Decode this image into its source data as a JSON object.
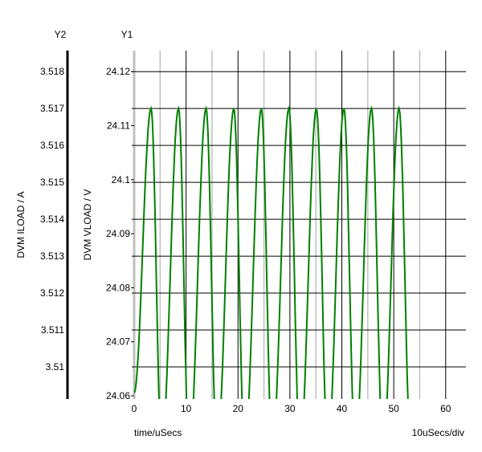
{
  "chart_data": {
    "type": "line",
    "y2_header": "Y2",
    "y1_header": "Y1",
    "y2label": "DVM ILOAD / A",
    "ylabel": "DVM VLOAD / V",
    "xlabel": "time/uSecs",
    "x_scale_note": "10uSecs/div",
    "xlim": [
      0,
      63.9
    ],
    "ylim": [
      24.0594,
      24.1239
    ],
    "y2lim": [
      3.50913,
      3.51857
    ],
    "x_ticks": [
      "0",
      "10",
      "20",
      "30",
      "40",
      "50",
      "60"
    ],
    "x_tick_values": [
      0,
      10,
      20,
      30,
      40,
      50,
      60
    ],
    "x_minor_grid": [
      5,
      15,
      25,
      35,
      45,
      55
    ],
    "y1_ticks": [
      "24.12",
      "24.11",
      "24.1",
      "24.09",
      "24.08",
      "24.07",
      "24.06"
    ],
    "y1_tick_values": [
      24.12,
      24.11,
      24.1,
      24.09,
      24.08,
      24.07,
      24.06
    ],
    "y2_ticks": [
      "3.518",
      "3.517",
      "3.516",
      "3.515",
      "3.514",
      "3.513",
      "3.512",
      "3.511",
      "3.51"
    ],
    "y2_tick_values": [
      3.518,
      3.517,
      3.516,
      3.515,
      3.514,
      3.513,
      3.512,
      3.511,
      3.51
    ],
    "grid": true,
    "series": [
      {
        "axis": "y1",
        "color": "#008000",
        "extrema": [
          {
            "t": 0.0,
            "v": 24.0605
          },
          {
            "t": 3.25,
            "v": 24.1132
          },
          {
            "t": 5.3,
            "v": 24.05
          },
          {
            "t": 8.55,
            "v": 24.1132
          },
          {
            "t": 10.6,
            "v": 24.05
          },
          {
            "t": 13.85,
            "v": 24.1132
          },
          {
            "t": 15.95,
            "v": 24.05
          },
          {
            "t": 19.2,
            "v": 24.1132
          },
          {
            "t": 21.3,
            "v": 24.05
          },
          {
            "t": 24.5,
            "v": 24.1132
          },
          {
            "t": 26.6,
            "v": 24.05
          },
          {
            "t": 29.8,
            "v": 24.1132
          },
          {
            "t": 31.95,
            "v": 24.05
          },
          {
            "t": 35.1,
            "v": 24.1132
          },
          {
            "t": 37.3,
            "v": 24.05
          },
          {
            "t": 40.4,
            "v": 24.1132
          },
          {
            "t": 42.6,
            "v": 24.05
          },
          {
            "t": 45.7,
            "v": 24.1132
          },
          {
            "t": 47.95,
            "v": 24.05
          },
          {
            "t": 51.0,
            "v": 24.1132
          },
          {
            "t": 53.3,
            "v": 24.05
          }
        ]
      }
    ]
  }
}
